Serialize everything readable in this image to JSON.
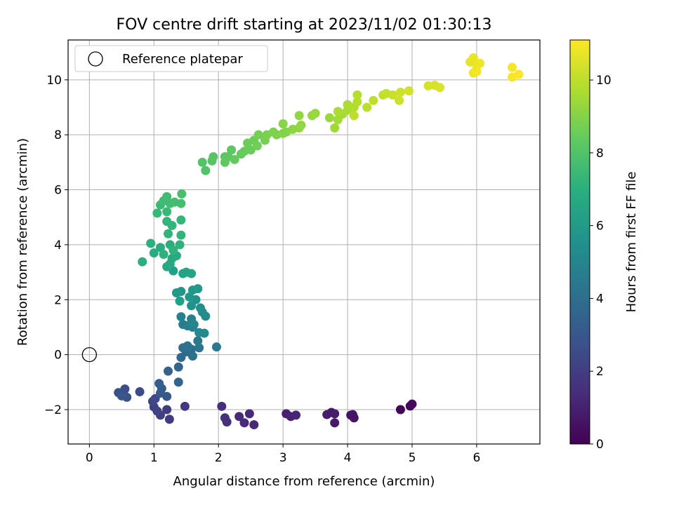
{
  "chart_data": {
    "type": "scatter",
    "title": "FOV centre drift starting at 2023/11/02 01:30:13",
    "xlabel": "Angular distance from reference (arcmin)",
    "ylabel": "Rotation from reference (arcmin)",
    "xlim": [
      -0.33,
      6.98
    ],
    "ylim": [
      -3.25,
      11.45
    ],
    "xticks": [
      0,
      1,
      2,
      3,
      4,
      5,
      6
    ],
    "yticks": [
      -2,
      0,
      2,
      4,
      6,
      8,
      10
    ],
    "grid": true,
    "legend": {
      "position": "top-left",
      "entries": [
        "Reference platepar"
      ]
    },
    "reference_point": {
      "x": 0,
      "y": 0,
      "label": "Reference platepar"
    },
    "colorbar": {
      "label": "Hours from first FF file",
      "colormap": "viridis",
      "range": [
        0,
        11.1
      ],
      "ticks": [
        0,
        2,
        4,
        6,
        8,
        10
      ]
    },
    "series": [
      {
        "points": [
          [
            4.82,
            -2.0,
            0.1
          ],
          [
            4.97,
            -1.87,
            0.15
          ],
          [
            5.0,
            -1.8,
            0.2
          ],
          [
            4.05,
            -2.2,
            0.5
          ],
          [
            4.1,
            -2.3,
            0.55
          ],
          [
            4.08,
            -2.18,
            0.6
          ],
          [
            3.8,
            -2.48,
            0.75
          ],
          [
            3.75,
            -2.1,
            0.8
          ],
          [
            3.68,
            -2.18,
            0.85
          ],
          [
            3.8,
            -2.15,
            0.9
          ],
          [
            3.05,
            -2.15,
            1.0
          ],
          [
            3.12,
            -2.25,
            1.05
          ],
          [
            3.2,
            -2.2,
            1.1
          ],
          [
            2.55,
            -2.55,
            1.2
          ],
          [
            2.48,
            -2.15,
            1.25
          ],
          [
            2.4,
            -2.48,
            1.3
          ],
          [
            2.32,
            -2.25,
            1.35
          ],
          [
            2.05,
            -1.88,
            1.5
          ],
          [
            2.1,
            -2.3,
            1.55
          ],
          [
            2.13,
            -2.45,
            1.6
          ],
          [
            1.48,
            -1.88,
            1.8
          ],
          [
            1.24,
            -2.35,
            1.9
          ],
          [
            1.2,
            -2.0,
            2.0
          ],
          [
            1.1,
            -2.2,
            2.05
          ],
          [
            1.0,
            -1.9,
            2.1
          ],
          [
            1.05,
            -2.05,
            2.15
          ],
          [
            0.98,
            -1.7,
            2.3
          ],
          [
            1.02,
            -1.6,
            2.4
          ],
          [
            0.78,
            -1.35,
            2.5
          ],
          [
            0.55,
            -1.25,
            2.6
          ],
          [
            0.58,
            -1.55,
            2.7
          ],
          [
            0.45,
            -1.38,
            2.8
          ],
          [
            0.5,
            -1.5,
            2.9
          ],
          [
            1.2,
            -1.52,
            3.0
          ],
          [
            1.1,
            -1.4,
            3.1
          ],
          [
            1.12,
            -1.23,
            3.2
          ],
          [
            1.08,
            -1.05,
            3.3
          ],
          [
            1.22,
            -0.6,
            3.4
          ],
          [
            1.38,
            -1.0,
            3.55
          ],
          [
            1.38,
            -0.45,
            3.6
          ],
          [
            1.42,
            -0.1,
            3.7
          ],
          [
            1.5,
            0.1,
            3.8
          ],
          [
            1.58,
            0.2,
            3.9
          ],
          [
            1.45,
            0.25,
            4.0
          ],
          [
            1.6,
            -0.05,
            4.1
          ],
          [
            1.52,
            0.32,
            4.2
          ],
          [
            1.7,
            0.25,
            4.3
          ],
          [
            1.68,
            0.5,
            4.4
          ],
          [
            1.97,
            0.28,
            4.5
          ],
          [
            1.45,
            1.1,
            4.6
          ],
          [
            1.52,
            1.05,
            4.7
          ],
          [
            1.6,
            1.0,
            4.8
          ],
          [
            1.42,
            1.38,
            4.85
          ],
          [
            1.58,
            1.3,
            4.9
          ],
          [
            1.62,
            1.1,
            5.0
          ],
          [
            1.7,
            0.8,
            5.1
          ],
          [
            1.78,
            0.78,
            5.2
          ],
          [
            1.8,
            1.4,
            5.3
          ],
          [
            1.75,
            1.55,
            5.4
          ],
          [
            1.72,
            1.7,
            5.5
          ],
          [
            1.65,
            2.0,
            5.6
          ],
          [
            1.58,
            1.78,
            5.7
          ],
          [
            1.42,
            2.3,
            5.8
          ],
          [
            1.55,
            2.1,
            5.85
          ],
          [
            1.6,
            2.35,
            5.9
          ],
          [
            1.68,
            2.4,
            6.0
          ],
          [
            1.35,
            2.25,
            6.1
          ],
          [
            1.4,
            1.95,
            6.2
          ],
          [
            1.3,
            3.05,
            6.3
          ],
          [
            1.45,
            2.95,
            6.4
          ],
          [
            1.5,
            3.0,
            6.45
          ],
          [
            1.58,
            2.95,
            6.5
          ],
          [
            1.25,
            3.3,
            6.6
          ],
          [
            1.2,
            3.2,
            6.65
          ],
          [
            1.28,
            3.5,
            6.7
          ],
          [
            1.35,
            3.6,
            6.75
          ],
          [
            1.0,
            3.7,
            6.8
          ],
          [
            1.1,
            3.9,
            6.85
          ],
          [
            1.25,
            4.0,
            6.9
          ],
          [
            0.82,
            3.38,
            6.95
          ],
          [
            0.95,
            4.05,
            7.0
          ],
          [
            1.15,
            3.65,
            7.05
          ],
          [
            1.3,
            3.8,
            7.1
          ],
          [
            1.4,
            4.0,
            7.15
          ],
          [
            1.22,
            4.4,
            7.2
          ],
          [
            1.42,
            4.35,
            7.25
          ],
          [
            1.2,
            4.85,
            7.3
          ],
          [
            1.28,
            4.7,
            7.35
          ],
          [
            1.42,
            4.9,
            7.4
          ],
          [
            1.05,
            5.15,
            7.45
          ],
          [
            1.2,
            5.2,
            7.5
          ],
          [
            1.1,
            5.45,
            7.55
          ],
          [
            1.15,
            5.6,
            7.6
          ],
          [
            1.2,
            5.75,
            7.65
          ],
          [
            1.25,
            5.5,
            7.7
          ],
          [
            1.32,
            5.55,
            7.75
          ],
          [
            1.42,
            5.5,
            7.8
          ],
          [
            1.43,
            5.85,
            7.85
          ],
          [
            1.8,
            6.7,
            8.0
          ],
          [
            1.75,
            7.0,
            8.05
          ],
          [
            1.9,
            7.05,
            8.1
          ],
          [
            1.92,
            7.2,
            8.15
          ],
          [
            2.1,
            7.2,
            8.2
          ],
          [
            2.2,
            7.45,
            8.25
          ],
          [
            2.15,
            7.2,
            8.3
          ],
          [
            2.1,
            7.0,
            8.35
          ],
          [
            2.25,
            7.1,
            8.4
          ],
          [
            2.35,
            7.3,
            8.45
          ],
          [
            2.4,
            7.4,
            8.5
          ],
          [
            2.5,
            7.45,
            8.55
          ],
          [
            2.45,
            7.7,
            8.6
          ],
          [
            2.55,
            7.8,
            8.65
          ],
          [
            2.6,
            7.6,
            8.7
          ],
          [
            2.62,
            8.0,
            8.75
          ],
          [
            2.72,
            7.8,
            8.8
          ],
          [
            2.75,
            8.0,
            8.85
          ],
          [
            2.85,
            8.1,
            8.9
          ],
          [
            2.9,
            8.0,
            8.95
          ],
          [
            3.0,
            8.05,
            9.0
          ],
          [
            3.05,
            8.1,
            9.05
          ],
          [
            3.0,
            8.4,
            9.1
          ],
          [
            3.15,
            8.2,
            9.15
          ],
          [
            3.25,
            8.25,
            9.2
          ],
          [
            3.28,
            8.35,
            9.25
          ],
          [
            3.25,
            8.7,
            9.3
          ],
          [
            3.45,
            8.7,
            9.35
          ],
          [
            3.5,
            8.78,
            9.4
          ],
          [
            3.72,
            8.62,
            9.45
          ],
          [
            3.8,
            8.25,
            9.5
          ],
          [
            3.85,
            8.55,
            9.55
          ],
          [
            3.92,
            8.75,
            9.6
          ],
          [
            4.0,
            8.9,
            9.65
          ],
          [
            3.85,
            8.85,
            9.7
          ],
          [
            4.0,
            9.1,
            9.75
          ],
          [
            4.1,
            9.0,
            9.8
          ],
          [
            4.15,
            9.2,
            9.85
          ],
          [
            4.15,
            9.45,
            9.9
          ],
          [
            4.3,
            9.0,
            9.95
          ],
          [
            4.1,
            8.7,
            10.0
          ],
          [
            4.4,
            9.25,
            10.05
          ],
          [
            4.55,
            9.45,
            10.1
          ],
          [
            4.6,
            9.5,
            10.15
          ],
          [
            4.7,
            9.45,
            10.2
          ],
          [
            4.8,
            9.25,
            10.25
          ],
          [
            4.82,
            9.55,
            10.3
          ],
          [
            4.95,
            9.6,
            10.35
          ],
          [
            5.25,
            9.78,
            10.4
          ],
          [
            5.35,
            9.8,
            10.45
          ],
          [
            5.43,
            9.72,
            10.5
          ],
          [
            5.9,
            10.65,
            10.7
          ],
          [
            5.95,
            10.8,
            10.75
          ],
          [
            6.0,
            10.5,
            10.8
          ],
          [
            5.95,
            10.25,
            10.85
          ],
          [
            6.05,
            10.6,
            10.9
          ],
          [
            6.0,
            10.3,
            10.95
          ],
          [
            6.55,
            10.45,
            11.0
          ],
          [
            6.55,
            10.1,
            11.02
          ],
          [
            6.65,
            10.2,
            11.05
          ]
        ]
      }
    ]
  }
}
